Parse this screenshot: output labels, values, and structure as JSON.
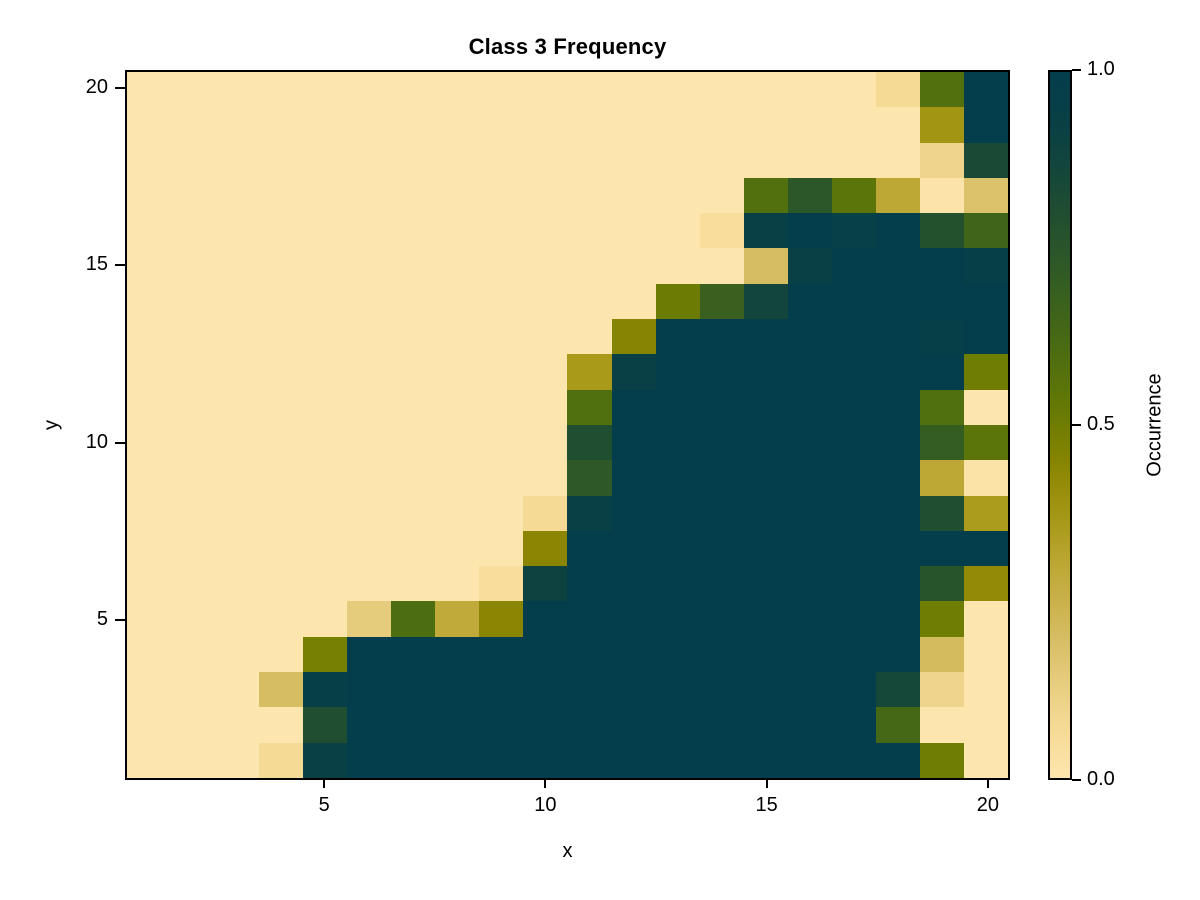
{
  "chart_data": {
    "type": "heatmap",
    "title": "Class 3 Frequency",
    "xlabel": "x",
    "ylabel": "y",
    "x_range": [
      0.5,
      20.5
    ],
    "y_range": [
      0.5,
      20.5
    ],
    "x_ticks": [
      5,
      10,
      15,
      20
    ],
    "y_ticks": [
      5,
      10,
      15,
      20
    ],
    "grid": false,
    "n_cols": 20,
    "n_rows": 20,
    "colorbar": {
      "label": "Occurrence",
      "range": [
        0,
        1
      ],
      "position": "right",
      "ticks": [
        {
          "value": 0.0,
          "label": "0.0"
        },
        {
          "value": 0.5,
          "label": "0.5"
        },
        {
          "value": 1.0,
          "label": "1.0"
        }
      ]
    },
    "colormap_stops": [
      {
        "value": 0.0,
        "color": "#fde5ae"
      },
      {
        "value": 0.05,
        "color": "#f8dd9c"
      },
      {
        "value": 0.1,
        "color": "#efd58b"
      },
      {
        "value": 0.15,
        "color": "#e3c978"
      },
      {
        "value": 0.2,
        "color": "#d6bd62"
      },
      {
        "value": 0.25,
        "color": "#cab14b"
      },
      {
        "value": 0.3,
        "color": "#bda835"
      },
      {
        "value": 0.35,
        "color": "#ac9c1e"
      },
      {
        "value": 0.4,
        "color": "#9b900b"
      },
      {
        "value": 0.45,
        "color": "#868402"
      },
      {
        "value": 0.5,
        "color": "#6f7d03"
      },
      {
        "value": 0.55,
        "color": "#5c7509"
      },
      {
        "value": 0.6,
        "color": "#4d6d11"
      },
      {
        "value": 0.65,
        "color": "#406519"
      },
      {
        "value": 0.7,
        "color": "#345d22"
      },
      {
        "value": 0.75,
        "color": "#2a552a"
      },
      {
        "value": 0.8,
        "color": "#1f4e31"
      },
      {
        "value": 0.85,
        "color": "#164839"
      },
      {
        "value": 0.9,
        "color": "#0d4241"
      },
      {
        "value": 0.95,
        "color": "#073f48"
      },
      {
        "value": 1.0,
        "color": "#043d4c"
      }
    ],
    "rows_order": "y=1 (bottom row) first, y=20 (top row) last; each row lists x=1..20",
    "values": [
      [
        0,
        0,
        0,
        0.07,
        0.93,
        1,
        1,
        1,
        1,
        1,
        1,
        1,
        1,
        1,
        1,
        1,
        1,
        1,
        0.5,
        0
      ],
      [
        0,
        0,
        0,
        0,
        0.8,
        1,
        1,
        1,
        1,
        1,
        1,
        1,
        1,
        1,
        1,
        1,
        1,
        0.63,
        0,
        0
      ],
      [
        0,
        0,
        0,
        0.2,
        0.95,
        1,
        1,
        1,
        1,
        1,
        1,
        1,
        1,
        1,
        1,
        1,
        1,
        0.85,
        0.1,
        0
      ],
      [
        0,
        0,
        0,
        0,
        0.48,
        1,
        1,
        1,
        1,
        1,
        1,
        1,
        1,
        1,
        1,
        1,
        1,
        1,
        0.21,
        0
      ],
      [
        0,
        0,
        0,
        0,
        0,
        0.14,
        0.6,
        0.29,
        0.44,
        1,
        1,
        1,
        1,
        1,
        1,
        1,
        1,
        1,
        0.5,
        0
      ],
      [
        0,
        0,
        0,
        0,
        0,
        0,
        0,
        0,
        0.05,
        0.9,
        1,
        1,
        1,
        1,
        1,
        1,
        1,
        1,
        0.76,
        0.42
      ],
      [
        0,
        0,
        0,
        0,
        0,
        0,
        0,
        0,
        0,
        0.44,
        1,
        1,
        1,
        1,
        1,
        1,
        1,
        1,
        1,
        1
      ],
      [
        0,
        0,
        0,
        0,
        0,
        0,
        0,
        0,
        0,
        0.07,
        0.93,
        1,
        1,
        1,
        1,
        1,
        1,
        1,
        0.8,
        0.35
      ],
      [
        0,
        0,
        0,
        0,
        0,
        0,
        0,
        0,
        0,
        0,
        0.73,
        1,
        1,
        1,
        1,
        1,
        1,
        1,
        0.3,
        0.02
      ],
      [
        0,
        0,
        0,
        0,
        0,
        0,
        0,
        0,
        0,
        0,
        0.8,
        1,
        1,
        1,
        1,
        1,
        1,
        1,
        0.7,
        0.55
      ],
      [
        0,
        0,
        0,
        0,
        0,
        0,
        0,
        0,
        0,
        0,
        0.59,
        1,
        1,
        1,
        1,
        1,
        1,
        1,
        0.59,
        0
      ],
      [
        0,
        0,
        0,
        0,
        0,
        0,
        0,
        0,
        0,
        0,
        0.36,
        0.93,
        1,
        1,
        1,
        1,
        1,
        1,
        1,
        0.5
      ],
      [
        0,
        0,
        0,
        0,
        0,
        0,
        0,
        0,
        0,
        0,
        0,
        0.45,
        1,
        1,
        1,
        1,
        1,
        1,
        0.95,
        1
      ],
      [
        0,
        0,
        0,
        0,
        0,
        0,
        0,
        0,
        0,
        0,
        0,
        0,
        0.51,
        0.68,
        0.87,
        1,
        1,
        1,
        1,
        1
      ],
      [
        0,
        0,
        0,
        0,
        0,
        0,
        0,
        0,
        0,
        0,
        0,
        0,
        0,
        0,
        0.2,
        0.93,
        1,
        1,
        1,
        0.95
      ],
      [
        0,
        0,
        0,
        0,
        0,
        0,
        0,
        0,
        0,
        0,
        0,
        0,
        0,
        0.05,
        0.93,
        1,
        0.94,
        1,
        0.78,
        0.65
      ],
      [
        0,
        0,
        0,
        0,
        0,
        0,
        0,
        0,
        0,
        0,
        0,
        0,
        0,
        0,
        0.58,
        0.74,
        0.55,
        0.3,
        0.01,
        0.18
      ],
      [
        0,
        0,
        0,
        0,
        0,
        0,
        0,
        0,
        0,
        0,
        0,
        0,
        0,
        0,
        0,
        0,
        0,
        0,
        0.1,
        0.83
      ],
      [
        0,
        0,
        0,
        0,
        0,
        0,
        0,
        0,
        0,
        0,
        0,
        0,
        0,
        0,
        0,
        0,
        0,
        0,
        0.38,
        1
      ],
      [
        0,
        0,
        0,
        0,
        0,
        0,
        0,
        0,
        0,
        0,
        0,
        0,
        0,
        0,
        0,
        0,
        0,
        0.07,
        0.58,
        1
      ]
    ]
  }
}
